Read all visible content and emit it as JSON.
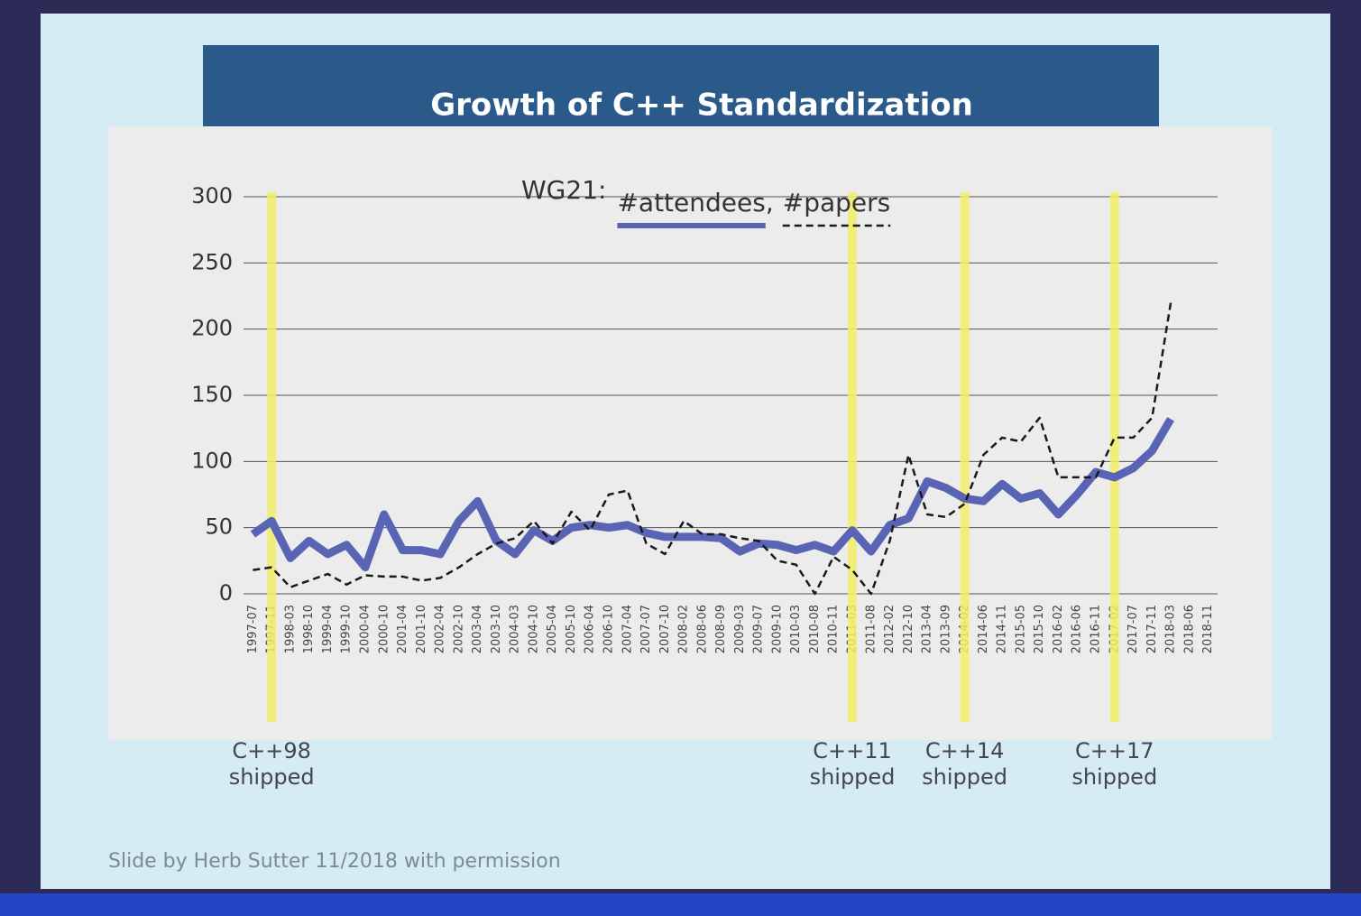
{
  "chart_data": {
    "type": "line",
    "slide_title": "Growth of C++ Standardization",
    "title": "WG21:",
    "legend_separator": ",",
    "footer": "Slide by Herb Sutter 11/2018 with permission",
    "categories": [
      "1997-07",
      "1997-11",
      "1998-03",
      "1998-10",
      "1999-04",
      "1999-10",
      "2000-04",
      "2000-10",
      "2001-04",
      "2001-10",
      "2002-04",
      "2002-10",
      "2003-04",
      "2003-10",
      "2004-03",
      "2004-10",
      "2005-04",
      "2005-10",
      "2006-04",
      "2006-10",
      "2007-04",
      "2007-07",
      "2007-10",
      "2008-02",
      "2008-06",
      "2008-09",
      "2009-03",
      "2009-07",
      "2009-10",
      "2010-03",
      "2010-08",
      "2010-11",
      "2011-03",
      "2011-08",
      "2012-02",
      "2012-10",
      "2013-04",
      "2013-09",
      "2014-02",
      "2014-06",
      "2014-11",
      "2015-05",
      "2015-10",
      "2016-02",
      "2016-06",
      "2016-11",
      "2017-02",
      "2017-07",
      "2017-11",
      "2018-03",
      "2018-06",
      "2018-11"
    ],
    "series": [
      {
        "name": "#attendees",
        "color": "#5a64b4",
        "style": "solid",
        "values": [
          45,
          55,
          27,
          40,
          30,
          37,
          20,
          60,
          33,
          33,
          30,
          55,
          70,
          40,
          30,
          48,
          40,
          50,
          52,
          50,
          52,
          46,
          43,
          43,
          43,
          42,
          32,
          38,
          37,
          33,
          37,
          32,
          48,
          32,
          52,
          57,
          85,
          80,
          72,
          70,
          83,
          72,
          76,
          60,
          75,
          92,
          88,
          95,
          108,
          132,
          null,
          null
        ]
      },
      {
        "name": "#papers",
        "color": "#1a1a1a",
        "style": "dashed",
        "values": [
          18,
          20,
          5,
          10,
          15,
          7,
          14,
          13,
          13,
          10,
          12,
          20,
          30,
          38,
          42,
          55,
          38,
          62,
          48,
          75,
          78,
          38,
          30,
          55,
          45,
          45,
          42,
          40,
          25,
          22,
          0,
          28,
          18,
          0,
          40,
          105,
          60,
          58,
          68,
          105,
          118,
          115,
          133,
          88,
          88,
          88,
          118,
          118,
          133,
          220,
          null,
          null
        ]
      }
    ],
    "ylim": [
      0,
      300
    ],
    "yticks": [
      0,
      50,
      100,
      150,
      200,
      250,
      300
    ],
    "grid": true,
    "releases": [
      {
        "category": "1997-11",
        "label": "C++98",
        "note": "shipped"
      },
      {
        "category": "2011-03",
        "label": "C++11",
        "note": "shipped"
      },
      {
        "category": "2014-02",
        "label": "C++14",
        "note": "shipped"
      },
      {
        "category": "2017-02",
        "label": "C++17",
        "note": "shipped"
      }
    ],
    "release_color": "#f4ef6a"
  }
}
